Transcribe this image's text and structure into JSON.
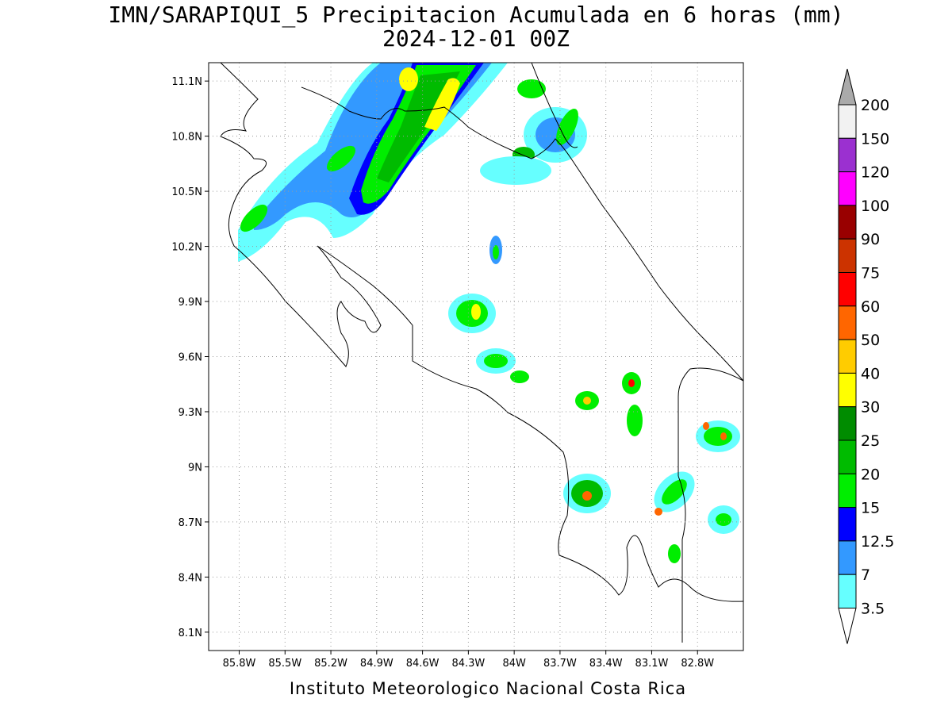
{
  "header": {
    "title_line1": "IMN/SARAPIQUI_5 Precipitacion Acumulada en 6 horas (mm)",
    "title_line2": "2024-12-01 00Z"
  },
  "footer": {
    "credit": "Instituto Meteorologico Nacional Costa Rica"
  },
  "map": {
    "lon_range": [
      -86.0,
      -82.5
    ],
    "lat_range": [
      8.0,
      11.2
    ],
    "lon_ticks": [
      {
        "value": -85.8,
        "label": "85.8W"
      },
      {
        "value": -85.5,
        "label": "85.5W"
      },
      {
        "value": -85.2,
        "label": "85.2W"
      },
      {
        "value": -84.9,
        "label": "84.9W"
      },
      {
        "value": -84.6,
        "label": "84.6W"
      },
      {
        "value": -84.3,
        "label": "84.3W"
      },
      {
        "value": -84.0,
        "label": "84W"
      },
      {
        "value": -83.7,
        "label": "83.7W"
      },
      {
        "value": -83.4,
        "label": "83.4W"
      },
      {
        "value": -83.1,
        "label": "83.1W"
      },
      {
        "value": -82.8,
        "label": "82.8W"
      }
    ],
    "lat_ticks": [
      {
        "value": 11.1,
        "label": "11.1N"
      },
      {
        "value": 10.8,
        "label": "10.8N"
      },
      {
        "value": 10.5,
        "label": "10.5N"
      },
      {
        "value": 10.2,
        "label": "10.2N"
      },
      {
        "value": 9.9,
        "label": "9.9N"
      },
      {
        "value": 9.6,
        "label": "9.6N"
      },
      {
        "value": 9.3,
        "label": "9.3N"
      },
      {
        "value": 9.0,
        "label": "9N"
      },
      {
        "value": 8.7,
        "label": "8.7N"
      },
      {
        "value": 8.4,
        "label": "8.4N"
      },
      {
        "value": 8.1,
        "label": "8.1N"
      }
    ],
    "grid": true
  },
  "colorbar": {
    "levels": [
      {
        "label": "200",
        "color": "#f2f2f2"
      },
      {
        "label": "150",
        "color": "#9b30d0"
      },
      {
        "label": "120",
        "color": "#ff00ff"
      },
      {
        "label": "100",
        "color": "#990000"
      },
      {
        "label": "90",
        "color": "#cc3300"
      },
      {
        "label": "75",
        "color": "#ff0000"
      },
      {
        "label": "60",
        "color": "#ff6600"
      },
      {
        "label": "50",
        "color": "#ffcc00"
      },
      {
        "label": "40",
        "color": "#ffff00"
      },
      {
        "label": "30",
        "color": "#008c00"
      },
      {
        "label": "25",
        "color": "#00bb00"
      },
      {
        "label": "20",
        "color": "#00ee00"
      },
      {
        "label": "15",
        "color": "#0000ff"
      },
      {
        "label": "12.5",
        "color": "#3399ff"
      },
      {
        "label": "7",
        "color": "#66ffff"
      },
      {
        "label": "3.5",
        "color": ""
      }
    ],
    "top_arrow_color": "#aaaaaa",
    "bottom_arrow_color": "#ffffff"
  }
}
